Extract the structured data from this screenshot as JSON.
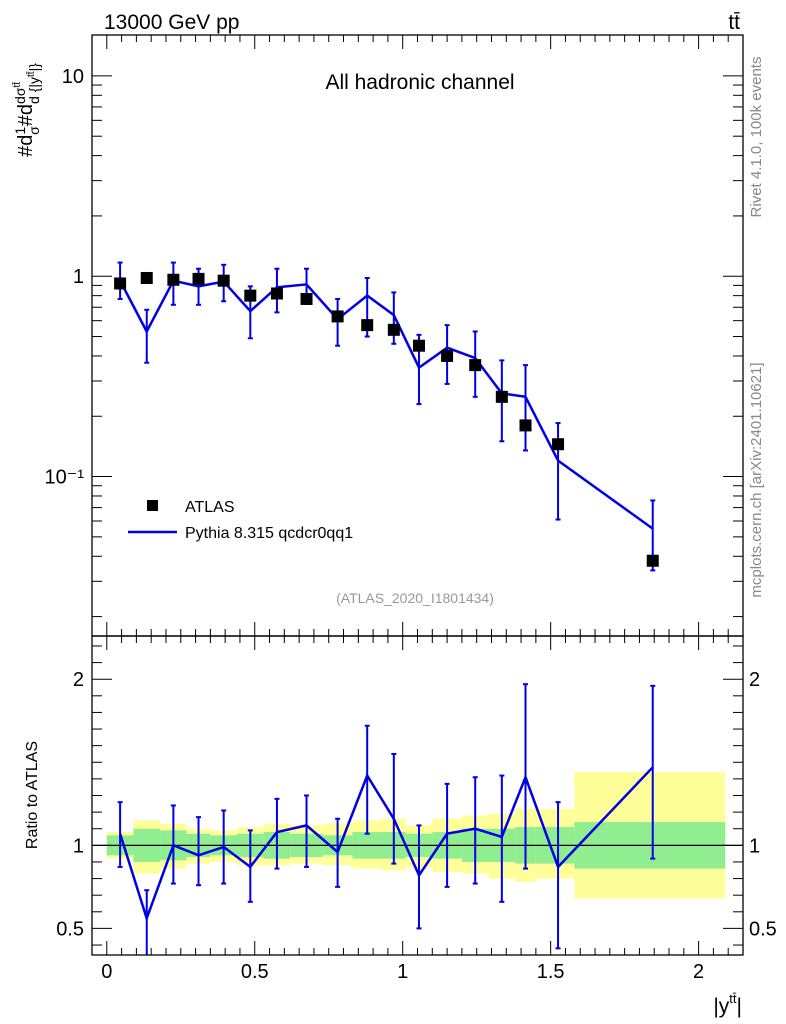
{
  "header": {
    "energy_label": "13000 GeV pp",
    "process_label": "tt̄",
    "channel_label": "All hadronic channel",
    "analysis_id": "(ATLAS_2020_I1801434)",
    "side_rivet": "Rivet 4.1.0,  100k events",
    "side_mcplots": "mcplots.cern.ch [arXiv:2401.10621]"
  },
  "chart_data": [
    {
      "type": "scatter",
      "title": "All hadronic channel",
      "ylabel": "#d1/σ#dσ^{tt̄}/d{|y^{tt̄}|}",
      "yscale": "log",
      "ylim": [
        0.016,
        16
      ],
      "xlim": [
        -0.05,
        2.15
      ],
      "y_ticks": [
        {
          "value": 0.1,
          "label": "10⁻¹"
        },
        {
          "value": 1,
          "label": "1"
        },
        {
          "value": 10,
          "label": "10"
        }
      ],
      "legend_position": "bottom-left",
      "series": [
        {
          "name": "ATLAS",
          "style": "markers",
          "color": "#000000",
          "x": [
            0.045,
            0.135,
            0.225,
            0.31,
            0.395,
            0.485,
            0.575,
            0.675,
            0.78,
            0.88,
            0.97,
            1.055,
            1.15,
            1.245,
            1.335,
            1.415,
            1.525,
            1.845
          ],
          "y": [
            0.92,
            0.98,
            0.96,
            0.97,
            0.95,
            0.8,
            0.82,
            0.77,
            0.63,
            0.57,
            0.54,
            0.45,
            0.4,
            0.36,
            0.25,
            0.18,
            0.145,
            0.038
          ]
        },
        {
          "name": "Pythia 8.315 qcdcr0qq1",
          "style": "line",
          "color": "#0000e6",
          "x": [
            0.045,
            0.135,
            0.225,
            0.31,
            0.395,
            0.485,
            0.575,
            0.675,
            0.78,
            0.88,
            0.97,
            1.055,
            1.15,
            1.245,
            1.335,
            1.415,
            1.525,
            1.845
          ],
          "y": [
            0.95,
            0.53,
            0.95,
            0.89,
            0.94,
            0.67,
            0.88,
            0.91,
            0.61,
            0.8,
            0.64,
            0.35,
            0.44,
            0.39,
            0.26,
            0.25,
            0.12,
            0.055
          ],
          "err_low": [
            0.77,
            0.37,
            0.72,
            0.72,
            0.75,
            0.49,
            0.66,
            0.73,
            0.45,
            0.5,
            0.46,
            0.23,
            0.29,
            0.25,
            0.15,
            0.135,
            0.061,
            0.034
          ],
          "err_high": [
            1.17,
            0.68,
            1.17,
            1.09,
            1.14,
            0.89,
            1.09,
            1.09,
            0.77,
            0.98,
            0.83,
            0.51,
            0.57,
            0.53,
            0.38,
            0.36,
            0.185,
            0.076
          ]
        }
      ]
    },
    {
      "type": "line",
      "ylabel": "Ratio to ATLAS",
      "xlabel": "|y^{tt̄}|",
      "xlim": [
        -0.05,
        2.15
      ],
      "ylim": [
        0.34,
        2.26
      ],
      "x_ticks": [
        {
          "value": 0,
          "label": "0"
        },
        {
          "value": 0.5,
          "label": "0.5"
        },
        {
          "value": 1,
          "label": "1"
        },
        {
          "value": 1.5,
          "label": "1.5"
        },
        {
          "value": 2,
          "label": "2"
        }
      ],
      "y_ticks": [
        {
          "value": 0.5,
          "label": "0.5"
        },
        {
          "value": 1,
          "label": "1"
        },
        {
          "value": 2,
          "label": "2"
        }
      ],
      "reference_line": 1,
      "uncertainty_bands": {
        "edges": [
          0,
          0.09,
          0.18,
          0.27,
          0.35,
          0.44,
          0.53,
          0.62,
          0.73,
          0.83,
          0.93,
          1.01,
          1.1,
          1.2,
          1.29,
          1.38,
          1.45,
          1.58,
          2.09
        ],
        "stat_low": [
          0.94,
          0.9,
          0.91,
          0.93,
          0.94,
          0.93,
          0.92,
          0.93,
          0.94,
          0.92,
          0.92,
          0.93,
          0.92,
          0.9,
          0.9,
          0.89,
          0.89,
          0.86
        ],
        "stat_high": [
          1.06,
          1.1,
          1.09,
          1.07,
          1.06,
          1.07,
          1.08,
          1.07,
          1.06,
          1.08,
          1.08,
          1.07,
          1.08,
          1.1,
          1.1,
          1.11,
          1.11,
          1.14
        ],
        "total_low": [
          0.92,
          0.83,
          0.86,
          0.89,
          0.9,
          0.88,
          0.88,
          0.89,
          0.88,
          0.86,
          0.85,
          0.87,
          0.84,
          0.83,
          0.8,
          0.78,
          0.8,
          0.68
        ],
        "total_high": [
          1.08,
          1.15,
          1.13,
          1.1,
          1.09,
          1.11,
          1.13,
          1.12,
          1.13,
          1.15,
          1.16,
          1.12,
          1.16,
          1.18,
          1.19,
          1.22,
          1.22,
          1.44
        ],
        "stat_color": "#90ee90",
        "total_color": "#ffff99"
      },
      "series": [
        {
          "name": "Pythia 8.315 qcdcr0qq1 / ATLAS",
          "color": "#0000e6",
          "x": [
            0.045,
            0.135,
            0.225,
            0.31,
            0.395,
            0.485,
            0.575,
            0.675,
            0.78,
            0.88,
            0.97,
            1.055,
            1.15,
            1.245,
            1.335,
            1.415,
            1.525,
            1.845
          ],
          "y": [
            1.07,
            0.56,
            1.0,
            0.94,
            0.99,
            0.87,
            1.08,
            1.12,
            0.96,
            1.42,
            1.16,
            0.82,
            1.07,
            1.1,
            1.05,
            1.41,
            0.87,
            1.47
          ],
          "err_low": [
            0.87,
            0.33,
            0.77,
            0.76,
            0.77,
            0.66,
            0.86,
            0.87,
            0.75,
            1.07,
            0.89,
            0.5,
            0.75,
            0.77,
            0.66,
            0.86,
            0.38,
            0.92
          ],
          "err_high": [
            1.26,
            0.73,
            1.24,
            1.17,
            1.21,
            1.09,
            1.28,
            1.3,
            1.16,
            1.72,
            1.55,
            1.12,
            1.37,
            1.41,
            1.42,
            1.97,
            1.26,
            1.96
          ]
        }
      ]
    }
  ]
}
